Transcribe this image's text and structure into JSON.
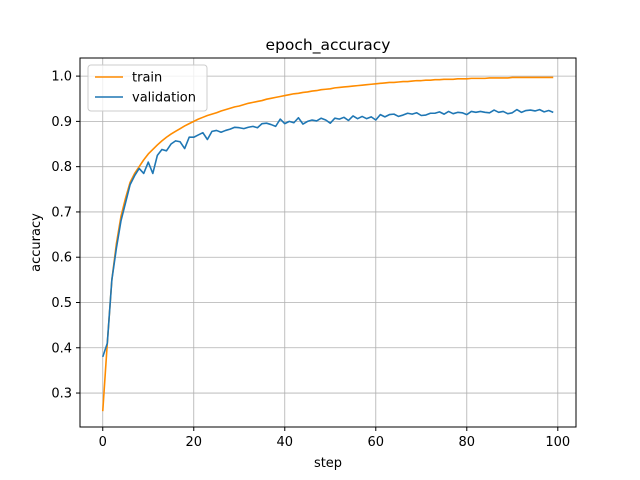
{
  "chart_data": {
    "type": "line",
    "title": "epoch_accuracy",
    "xlabel": "step",
    "ylabel": "accuracy",
    "xlim": [
      -5,
      104
    ],
    "ylim": [
      0.225,
      1.04
    ],
    "xticks": [
      0,
      20,
      40,
      60,
      80,
      100
    ],
    "yticks": [
      0.3,
      0.4,
      0.5,
      0.6,
      0.7,
      0.8,
      0.9,
      1.0
    ],
    "xtick_labels": [
      "0",
      "20",
      "40",
      "60",
      "80",
      "100"
    ],
    "ytick_labels": [
      "0.3",
      "0.4",
      "0.5",
      "0.6",
      "0.7",
      "0.8",
      "0.9",
      "1.0"
    ],
    "grid": true,
    "legend_position": "top-left",
    "series": [
      {
        "name": "train",
        "color": "#ff8c00",
        "x": [
          0,
          1,
          2,
          3,
          4,
          5,
          6,
          7,
          8,
          9,
          10,
          11,
          12,
          13,
          14,
          15,
          16,
          17,
          18,
          19,
          20,
          21,
          22,
          23,
          24,
          25,
          26,
          27,
          28,
          29,
          30,
          31,
          32,
          33,
          34,
          35,
          36,
          37,
          38,
          39,
          40,
          41,
          42,
          43,
          44,
          45,
          46,
          47,
          48,
          49,
          50,
          51,
          52,
          53,
          54,
          55,
          56,
          57,
          58,
          59,
          60,
          61,
          62,
          63,
          64,
          65,
          66,
          67,
          68,
          69,
          70,
          71,
          72,
          73,
          74,
          75,
          76,
          77,
          78,
          79,
          80,
          81,
          82,
          83,
          84,
          85,
          86,
          87,
          88,
          89,
          90,
          91,
          92,
          93,
          94,
          95,
          96,
          97,
          98,
          99
        ],
        "y": [
          0.26,
          0.41,
          0.55,
          0.63,
          0.69,
          0.73,
          0.765,
          0.785,
          0.8,
          0.815,
          0.828,
          0.838,
          0.848,
          0.857,
          0.865,
          0.872,
          0.878,
          0.884,
          0.89,
          0.895,
          0.9,
          0.905,
          0.909,
          0.913,
          0.916,
          0.919,
          0.923,
          0.926,
          0.929,
          0.932,
          0.934,
          0.937,
          0.94,
          0.942,
          0.944,
          0.946,
          0.949,
          0.951,
          0.953,
          0.955,
          0.957,
          0.959,
          0.961,
          0.962,
          0.964,
          0.965,
          0.967,
          0.968,
          0.97,
          0.971,
          0.972,
          0.974,
          0.975,
          0.976,
          0.977,
          0.978,
          0.979,
          0.98,
          0.981,
          0.982,
          0.983,
          0.984,
          0.985,
          0.986,
          0.986,
          0.987,
          0.988,
          0.988,
          0.989,
          0.99,
          0.99,
          0.991,
          0.991,
          0.992,
          0.992,
          0.993,
          0.993,
          0.993,
          0.994,
          0.994,
          0.994,
          0.995,
          0.995,
          0.995,
          0.995,
          0.996,
          0.996,
          0.996,
          0.996,
          0.996,
          0.997,
          0.997,
          0.997,
          0.997,
          0.997,
          0.997,
          0.997,
          0.997,
          0.997,
          0.997
        ]
      },
      {
        "name": "validation",
        "color": "#1f77b4",
        "x": [
          0,
          1,
          2,
          3,
          4,
          5,
          6,
          7,
          8,
          9,
          10,
          11,
          12,
          13,
          14,
          15,
          16,
          17,
          18,
          19,
          20,
          21,
          22,
          23,
          24,
          25,
          26,
          27,
          28,
          29,
          30,
          31,
          32,
          33,
          34,
          35,
          36,
          37,
          38,
          39,
          40,
          41,
          42,
          43,
          44,
          45,
          46,
          47,
          48,
          49,
          50,
          51,
          52,
          53,
          54,
          55,
          56,
          57,
          58,
          59,
          60,
          61,
          62,
          63,
          64,
          65,
          66,
          67,
          68,
          69,
          70,
          71,
          72,
          73,
          74,
          75,
          76,
          77,
          78,
          79,
          80,
          81,
          82,
          83,
          84,
          85,
          86,
          87,
          88,
          89,
          90,
          91,
          92,
          93,
          94,
          95,
          96,
          97,
          98,
          99
        ],
        "y": [
          0.38,
          0.41,
          0.55,
          0.62,
          0.68,
          0.72,
          0.76,
          0.78,
          0.796,
          0.785,
          0.81,
          0.785,
          0.825,
          0.838,
          0.835,
          0.85,
          0.857,
          0.855,
          0.84,
          0.865,
          0.865,
          0.87,
          0.875,
          0.86,
          0.878,
          0.88,
          0.876,
          0.88,
          0.883,
          0.887,
          0.886,
          0.884,
          0.887,
          0.889,
          0.886,
          0.895,
          0.896,
          0.893,
          0.889,
          0.905,
          0.895,
          0.9,
          0.897,
          0.908,
          0.894,
          0.9,
          0.903,
          0.901,
          0.907,
          0.903,
          0.896,
          0.907,
          0.905,
          0.909,
          0.902,
          0.912,
          0.906,
          0.911,
          0.906,
          0.91,
          0.903,
          0.915,
          0.91,
          0.915,
          0.916,
          0.911,
          0.914,
          0.918,
          0.916,
          0.919,
          0.913,
          0.914,
          0.918,
          0.918,
          0.921,
          0.916,
          0.922,
          0.917,
          0.92,
          0.919,
          0.915,
          0.922,
          0.92,
          0.922,
          0.92,
          0.919,
          0.925,
          0.92,
          0.922,
          0.917,
          0.919,
          0.926,
          0.92,
          0.924,
          0.925,
          0.923,
          0.926,
          0.921,
          0.924,
          0.92
        ]
      }
    ]
  }
}
